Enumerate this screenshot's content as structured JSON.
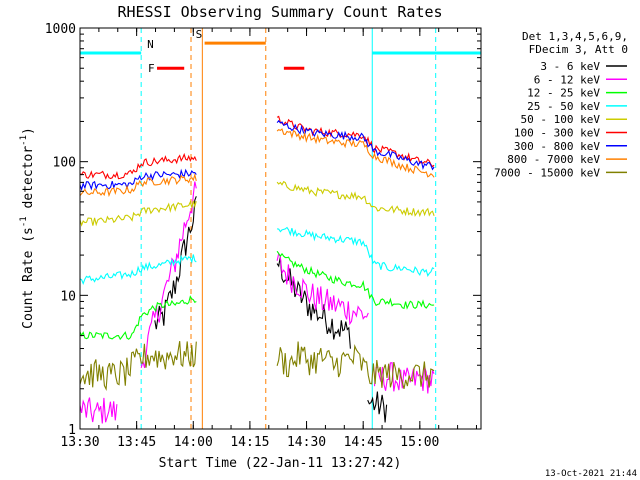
{
  "chart_data": {
    "type": "line",
    "title": "RHESSI Observing Summary Count Rates",
    "xlabel": "Start Time (22-Jan-11 13:27:42)",
    "ylabel": "Count Rate (s⁻¹ detector⁻¹)",
    "ylabel_main": "Count Rate (s",
    "ylabel_mid": " detector",
    "ylabel_end": ")",
    "ylabel_exp": "-1",
    "yscale": "log",
    "ylim": [
      1,
      1000
    ],
    "xlim": [
      13.5,
      15.27
    ],
    "xtick_labels": [
      "13:30",
      "13:45",
      "14:00",
      "14:15",
      "14:30",
      "14:45",
      "15:00"
    ],
    "xtick_values": [
      13.5,
      13.75,
      14.0,
      14.25,
      14.5,
      14.75,
      15.0
    ],
    "ytick_labels": [
      "1",
      "10",
      "100",
      "1000"
    ],
    "ytick_values": [
      1,
      10,
      100,
      1000
    ],
    "footer": "13-Oct-2021 21:44",
    "legend_header": [
      "Det 1,3,4,5,6,9,",
      "FDecim 3, Att 0"
    ],
    "series": [
      {
        "name": "3 - 6 keV",
        "color": "#000000",
        "segments": [
          {
            "x": [
              13.83,
              13.87,
              13.92,
              13.96,
              14.0,
              14.02
            ],
            "y": [
              6,
              7,
              12,
              22,
              38,
              50
            ]
          },
          {
            "x": [
              14.37,
              14.42,
              14.47,
              14.52,
              14.57,
              14.62,
              14.66,
              14.7
            ],
            "y": [
              18,
              13,
              10,
              8,
              7,
              6,
              5.5,
              5
            ]
          },
          {
            "x": [
              14.77,
              14.82,
              14.86
            ],
            "y": [
              1.6,
              1.5,
              1.4
            ]
          }
        ]
      },
      {
        "name": "6 - 12 keV",
        "color": "#ff00ff",
        "segments": [
          {
            "x": [
              13.5,
              13.57,
              13.62,
              13.67
            ],
            "y": [
              1.4,
              1.3,
              1.4,
              1.3
            ]
          },
          {
            "x": [
              13.77,
              13.8,
              13.83,
              13.87,
              13.92,
              13.96,
              14.0,
              14.02
            ],
            "y": [
              3,
              4.5,
              6.5,
              10,
              18,
              32,
              55,
              58
            ]
          },
          {
            "x": [
              14.37,
              14.42,
              14.47,
              14.52,
              14.57,
              14.62,
              14.67,
              14.72,
              14.78
            ],
            "y": [
              18,
              14,
              12,
              10,
              9,
              8.5,
              8,
              7.5,
              7
            ]
          },
          {
            "x": [
              14.8,
              14.87,
              14.93,
              15.0,
              15.07
            ],
            "y": [
              2.3,
              2.5,
              2.2,
              2.4,
              2.3
            ]
          }
        ]
      },
      {
        "name": "12 - 25 keV",
        "color": "#00ff00",
        "segments": [
          {
            "x": [
              13.5,
              13.6,
              13.67,
              13.73,
              13.77,
              13.82,
              13.87,
              13.92,
              13.96,
              14.0,
              14.02
            ],
            "y": [
              5,
              5,
              5,
              5,
              7,
              8,
              8.5,
              8.5,
              9,
              9.5,
              9.5
            ]
          },
          {
            "x": [
              14.37,
              14.45,
              14.52,
              14.6,
              14.67,
              14.75,
              14.8,
              14.87,
              14.93,
              15.0,
              15.07
            ],
            "y": [
              20,
              17,
              15,
              13.5,
              12.5,
              12,
              9,
              9,
              8.5,
              8.5,
              8.5
            ]
          }
        ]
      },
      {
        "name": "25 - 50 keV",
        "color": "#00ffff",
        "segments": [
          {
            "x": [
              13.5,
              13.6,
              13.67,
              13.73,
              13.77,
              13.82,
              13.87,
              13.92,
              13.96,
              14.0,
              14.02
            ],
            "y": [
              13,
              13.5,
              14,
              14.5,
              16,
              16.5,
              17,
              18,
              18.5,
              19,
              19
            ]
          },
          {
            "x": [
              14.37,
              14.45,
              14.52,
              14.6,
              14.67,
              14.75,
              14.8,
              14.87,
              14.93,
              15.0,
              15.07
            ],
            "y": [
              32,
              30,
              28,
              27,
              26,
              25,
              17,
              16,
              16,
              15,
              15
            ]
          }
        ]
      },
      {
        "name": "50 - 100 keV",
        "color": "#cccc00",
        "segments": [
          {
            "x": [
              13.5,
              13.6,
              13.67,
              13.73,
              13.77,
              13.82,
              13.87,
              13.92,
              13.96,
              14.0,
              14.02
            ],
            "y": [
              35,
              36,
              37,
              38,
              42,
              44,
              45,
              46,
              47,
              48,
              48
            ]
          },
          {
            "x": [
              14.37,
              14.45,
              14.52,
              14.6,
              14.67,
              14.75,
              14.8,
              14.87,
              14.93,
              15.0,
              15.07
            ],
            "y": [
              68,
              64,
              60,
              58,
              56,
              55,
              45,
              44,
              43,
              42,
              42
            ]
          }
        ]
      },
      {
        "name": "100 - 300 keV",
        "color": "#ff0000",
        "segments": [
          {
            "x": [
              13.5,
              13.6,
              13.67,
              13.73,
              13.77,
              13.82,
              13.87,
              13.92,
              13.96,
              14.0,
              14.02
            ],
            "y": [
              80,
              80,
              80,
              82,
              98,
              100,
              102,
              104,
              106,
              106,
              106
            ]
          },
          {
            "x": [
              14.37,
              14.45,
              14.52,
              14.6,
              14.67,
              14.75,
              14.8,
              14.87,
              14.93,
              15.0,
              15.07
            ],
            "y": [
              210,
              185,
              170,
              165,
              162,
              158,
              125,
              118,
              110,
              100,
              95
            ]
          }
        ]
      },
      {
        "name": "300 - 800 keV",
        "color": "#0000ff",
        "segments": [
          {
            "x": [
              13.5,
              13.6,
              13.67,
              13.73,
              13.77,
              13.82,
              13.87,
              13.92,
              13.96,
              14.0,
              14.02
            ],
            "y": [
              66,
              67,
              67,
              68,
              78,
              79,
              80,
              80,
              81,
              82,
              82
            ]
          },
          {
            "x": [
              14.37,
              14.45,
              14.52,
              14.6,
              14.67,
              14.75,
              14.8,
              14.87,
              14.93,
              15.0,
              15.07
            ],
            "y": [
              195,
              178,
              165,
              160,
              156,
              152,
              120,
              112,
              104,
              96,
              92
            ]
          }
        ]
      },
      {
        "name": "800 - 7000 keV",
        "color": "#ff8000",
        "segments": [
          {
            "x": [
              13.5,
              13.6,
              13.67,
              13.73,
              13.77,
              13.82,
              13.87,
              13.92,
              13.96,
              14.0,
              14.02
            ],
            "y": [
              58,
              59,
              60,
              62,
              70,
              71,
              72,
              73,
              74,
              75,
              75
            ]
          },
          {
            "x": [
              14.37,
              14.45,
              14.52,
              14.6,
              14.67,
              14.75,
              14.8,
              14.87,
              14.93,
              15.0,
              15.07
            ],
            "y": [
              175,
              160,
              150,
              142,
              138,
              135,
              110,
              100,
              92,
              85,
              80
            ]
          }
        ]
      },
      {
        "name": "7000 - 15000 keV",
        "color": "#808000",
        "segments": [
          {
            "x": [
              13.5,
              13.57,
              13.63,
              13.7,
              13.77,
              13.82,
              13.87,
              13.92,
              13.96,
              14.0,
              14.02
            ],
            "y": [
              2.5,
              2.6,
              2.5,
              2.6,
              3.4,
              3.6,
              3.4,
              3.7,
              3.5,
              3.6,
              3.6
            ]
          },
          {
            "x": [
              14.37,
              14.42,
              14.47,
              14.52,
              14.57,
              14.62,
              14.67,
              14.72,
              14.78,
              14.84,
              14.9,
              14.96,
              15.02,
              15.07
            ],
            "y": [
              3.5,
              3.0,
              3.6,
              3.2,
              3.4,
              3.0,
              3.3,
              3.4,
              2.5,
              2.6,
              2.5,
              2.6,
              2.5,
              2.6
            ]
          }
        ]
      }
    ],
    "state_bars": [
      {
        "label": "N",
        "color": "#00ffff",
        "level": 650,
        "segments": [
          [
            13.5,
            13.77
          ],
          [
            14.79,
            15.27
          ]
        ]
      },
      {
        "label": "F",
        "color": "#ff0000",
        "level": 500,
        "segments": [
          [
            13.84,
            13.96
          ],
          [
            14.4,
            14.49
          ]
        ]
      },
      {
        "label": "S",
        "color": "#ff8000",
        "level": 770,
        "segments": [
          [
            14.05,
            14.32
          ]
        ]
      }
    ],
    "marker_lines": [
      {
        "x": 13.77,
        "color": "#00ffff",
        "dashed": true
      },
      {
        "x": 13.99,
        "color": "#ff8000",
        "dashed": true
      },
      {
        "x": 14.04,
        "color": "#ff8000",
        "dashed": false
      },
      {
        "x": 14.32,
        "color": "#ff8000",
        "dashed": true
      },
      {
        "x": 14.79,
        "color": "#00ffff",
        "dashed": false
      },
      {
        "x": 15.07,
        "color": "#00ffff",
        "dashed": true
      }
    ]
  }
}
